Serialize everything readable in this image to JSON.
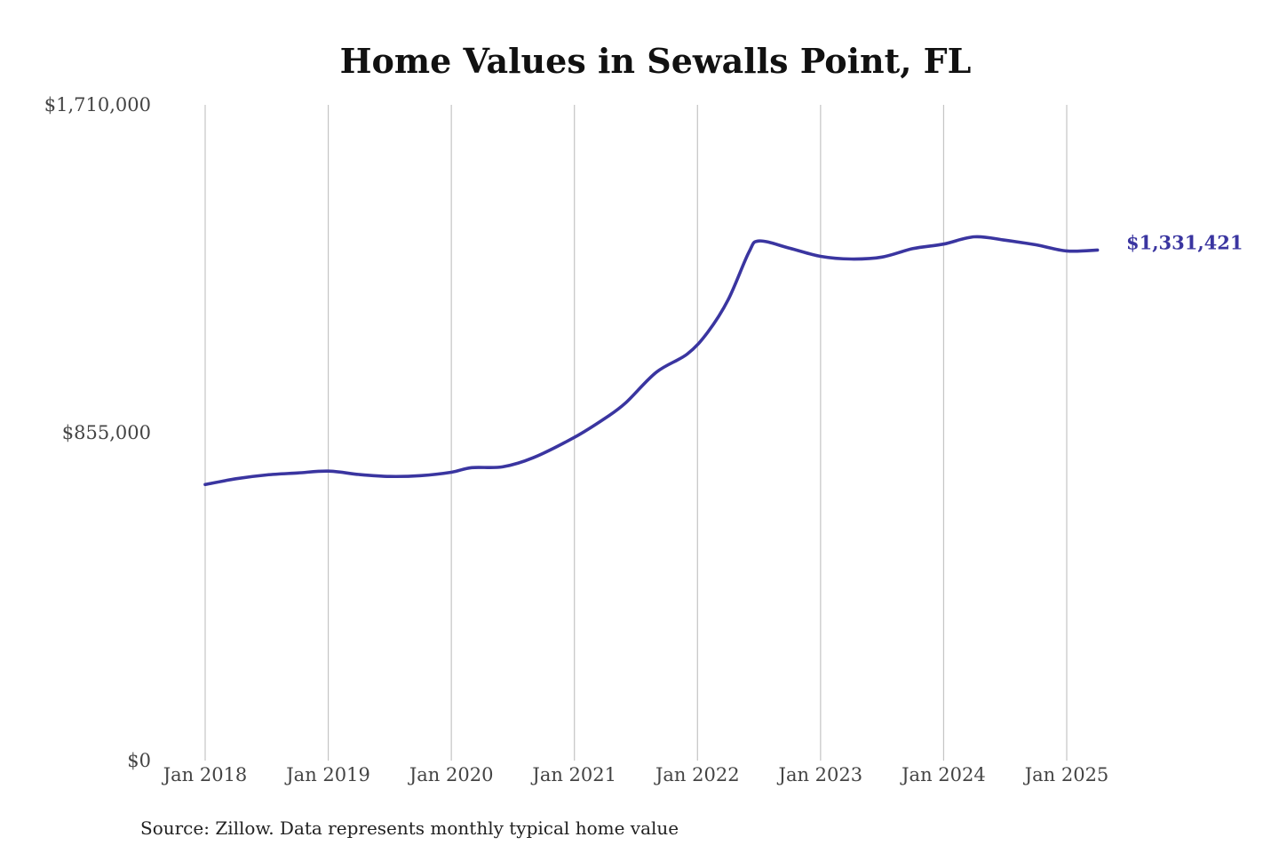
{
  "chart_data": {
    "type": "line",
    "title": "Home Values in Sewalls Point, FL",
    "xlabel": "",
    "ylabel": "",
    "ylim": [
      0,
      1710000
    ],
    "yticks": [
      {
        "value": 0,
        "label": "$0"
      },
      {
        "value": 855000,
        "label": "$855,000"
      },
      {
        "value": 1710000,
        "label": "$1,710,000"
      }
    ],
    "xticks": [
      {
        "value": "2018-01",
        "label": "Jan 2018"
      },
      {
        "value": "2019-01",
        "label": "Jan 2019"
      },
      {
        "value": "2020-01",
        "label": "Jan 2020"
      },
      {
        "value": "2021-01",
        "label": "Jan 2021"
      },
      {
        "value": "2022-01",
        "label": "Jan 2022"
      },
      {
        "value": "2023-01",
        "label": "Jan 2023"
      },
      {
        "value": "2024-01",
        "label": "Jan 2024"
      },
      {
        "value": "2025-01",
        "label": "Jan 2025"
      }
    ],
    "xlim": [
      "2018-01",
      "2025-01"
    ],
    "grid": {
      "vertical": true,
      "horizontal": false
    },
    "series": [
      {
        "color": "#3a35a0",
        "end_label": "$1,331,421",
        "points": [
          {
            "x": "2018-01",
            "y": 720000
          },
          {
            "x": "2018-04",
            "y": 735000
          },
          {
            "x": "2018-07",
            "y": 745000
          },
          {
            "x": "2018-10",
            "y": 750000
          },
          {
            "x": "2019-01",
            "y": 755000
          },
          {
            "x": "2019-04",
            "y": 746000
          },
          {
            "x": "2019-07",
            "y": 741000
          },
          {
            "x": "2019-10",
            "y": 743000
          },
          {
            "x": "2020-01",
            "y": 752000
          },
          {
            "x": "2020-03",
            "y": 764000
          },
          {
            "x": "2020-06",
            "y": 766000
          },
          {
            "x": "2020-09",
            "y": 790000
          },
          {
            "x": "2021-01",
            "y": 843000
          },
          {
            "x": "2021-04",
            "y": 893000
          },
          {
            "x": "2021-06",
            "y": 933000
          },
          {
            "x": "2021-09",
            "y": 1013000
          },
          {
            "x": "2021-12",
            "y": 1060000
          },
          {
            "x": "2022-02",
            "y": 1117000
          },
          {
            "x": "2022-04",
            "y": 1202000
          },
          {
            "x": "2022-06",
            "y": 1325000
          },
          {
            "x": "2022-07",
            "y": 1355000
          },
          {
            "x": "2022-10",
            "y": 1336000
          },
          {
            "x": "2023-01",
            "y": 1315000
          },
          {
            "x": "2023-04",
            "y": 1308000
          },
          {
            "x": "2023-07",
            "y": 1313000
          },
          {
            "x": "2023-10",
            "y": 1335000
          },
          {
            "x": "2024-01",
            "y": 1347000
          },
          {
            "x": "2024-04",
            "y": 1366000
          },
          {
            "x": "2024-07",
            "y": 1357000
          },
          {
            "x": "2024-10",
            "y": 1345000
          },
          {
            "x": "2025-01",
            "y": 1329000
          },
          {
            "x": "2025-04",
            "y": 1331421
          }
        ]
      }
    ]
  },
  "source": "Source: Zillow. Data represents monthly typical home value"
}
